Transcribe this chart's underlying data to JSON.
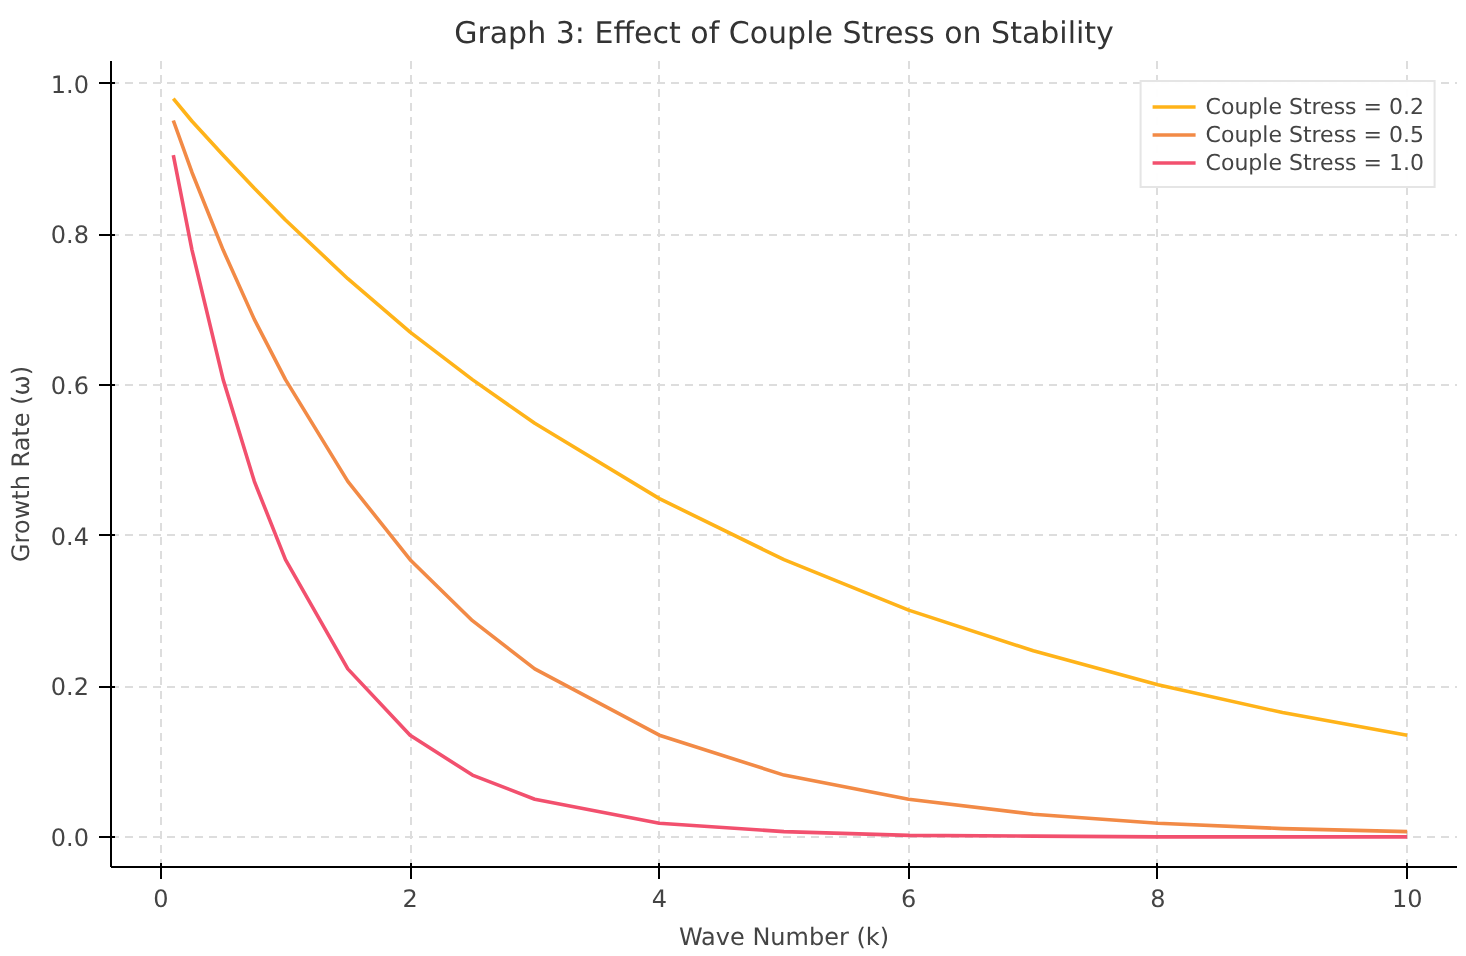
{
  "chart_data": {
    "type": "line",
    "title": "Graph 3: Effect of Couple Stress on Stability",
    "xlabel": "Wave Number (k)",
    "ylabel": "Growth Rate (ω)",
    "x": [
      0.1,
      0.25,
      0.5,
      0.75,
      1,
      1.5,
      2,
      2.5,
      3,
      4,
      5,
      6,
      7,
      8,
      9,
      10
    ],
    "series": [
      {
        "name": "Couple Stress = 0.2",
        "color": "#ffb319",
        "values": [
          0.98,
          0.95,
          0.905,
          0.861,
          0.819,
          0.741,
          0.67,
          0.607,
          0.549,
          0.449,
          0.368,
          0.301,
          0.247,
          0.202,
          0.165,
          0.135
        ]
      },
      {
        "name": "Couple Stress = 0.5",
        "color": "#f28a46",
        "values": [
          0.951,
          0.882,
          0.779,
          0.687,
          0.607,
          0.472,
          0.368,
          0.287,
          0.223,
          0.135,
          0.082,
          0.05,
          0.03,
          0.018,
          0.011,
          0.007
        ]
      },
      {
        "name": "Couple Stress = 1.0",
        "color": "#f2506e",
        "values": [
          0.905,
          0.779,
          0.607,
          0.472,
          0.368,
          0.223,
          0.135,
          0.082,
          0.05,
          0.018,
          0.007,
          0.002,
          0.001,
          0.0,
          0.0,
          0.0
        ]
      }
    ],
    "xlim": [
      -0.4,
      10.4
    ],
    "ylim": [
      -0.04,
      1.03
    ],
    "xticks": [
      0,
      2,
      4,
      6,
      8,
      10
    ],
    "yticks": [
      {
        "value": 0,
        "label": "0.0"
      },
      {
        "value": 0.2,
        "label": "0.2"
      },
      {
        "value": 0.4,
        "label": "0.4"
      },
      {
        "value": 0.6,
        "label": "0.6"
      },
      {
        "value": 0.8,
        "label": "0.8"
      },
      {
        "value": 1.0,
        "label": "1.0"
      }
    ],
    "grid": true,
    "legend": "top right",
    "line_style": "solid",
    "marker": "none"
  }
}
